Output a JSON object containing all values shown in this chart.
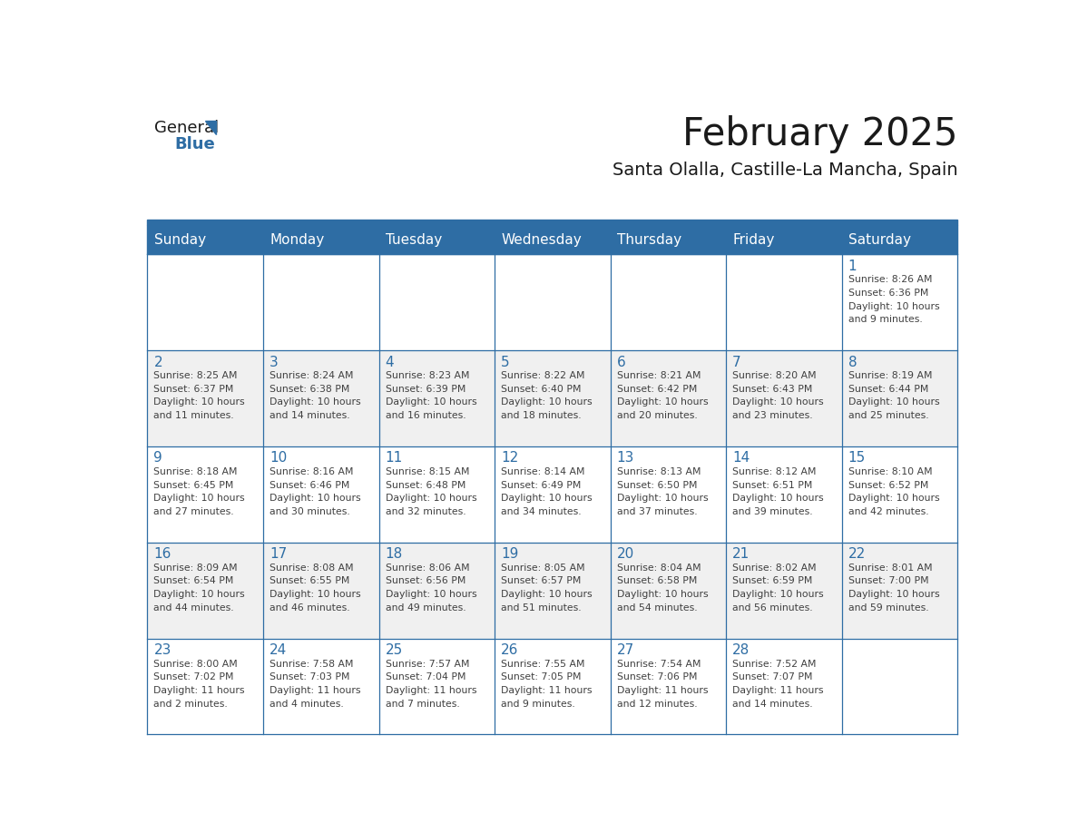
{
  "title": "February 2025",
  "subtitle": "Santa Olalla, Castille-La Mancha, Spain",
  "days_of_week": [
    "Sunday",
    "Monday",
    "Tuesday",
    "Wednesday",
    "Thursday",
    "Friday",
    "Saturday"
  ],
  "header_bg": "#2E6DA4",
  "header_text": "#FFFFFF",
  "cell_bg": "#FFFFFF",
  "cell_bg_alt": "#F0F0F0",
  "border_color": "#2E6DA4",
  "day_num_color": "#2E6DA4",
  "info_color": "#404040",
  "title_color": "#1a1a1a",
  "subtitle_color": "#1a1a1a",
  "logo_general_color": "#1a1a1a",
  "logo_blue_color": "#2E6DA4",
  "calendar_data": [
    [
      null,
      null,
      null,
      null,
      null,
      null,
      {
        "day": "1",
        "sunrise": "8:26 AM",
        "sunset": "6:36 PM",
        "daylight_line1": "Daylight: 10 hours",
        "daylight_line2": "and 9 minutes."
      }
    ],
    [
      {
        "day": "2",
        "sunrise": "8:25 AM",
        "sunset": "6:37 PM",
        "daylight_line1": "Daylight: 10 hours",
        "daylight_line2": "and 11 minutes."
      },
      {
        "day": "3",
        "sunrise": "8:24 AM",
        "sunset": "6:38 PM",
        "daylight_line1": "Daylight: 10 hours",
        "daylight_line2": "and 14 minutes."
      },
      {
        "day": "4",
        "sunrise": "8:23 AM",
        "sunset": "6:39 PM",
        "daylight_line1": "Daylight: 10 hours",
        "daylight_line2": "and 16 minutes."
      },
      {
        "day": "5",
        "sunrise": "8:22 AM",
        "sunset": "6:40 PM",
        "daylight_line1": "Daylight: 10 hours",
        "daylight_line2": "and 18 minutes."
      },
      {
        "day": "6",
        "sunrise": "8:21 AM",
        "sunset": "6:42 PM",
        "daylight_line1": "Daylight: 10 hours",
        "daylight_line2": "and 20 minutes."
      },
      {
        "day": "7",
        "sunrise": "8:20 AM",
        "sunset": "6:43 PM",
        "daylight_line1": "Daylight: 10 hours",
        "daylight_line2": "and 23 minutes."
      },
      {
        "day": "8",
        "sunrise": "8:19 AM",
        "sunset": "6:44 PM",
        "daylight_line1": "Daylight: 10 hours",
        "daylight_line2": "and 25 minutes."
      }
    ],
    [
      {
        "day": "9",
        "sunrise": "8:18 AM",
        "sunset": "6:45 PM",
        "daylight_line1": "Daylight: 10 hours",
        "daylight_line2": "and 27 minutes."
      },
      {
        "day": "10",
        "sunrise": "8:16 AM",
        "sunset": "6:46 PM",
        "daylight_line1": "Daylight: 10 hours",
        "daylight_line2": "and 30 minutes."
      },
      {
        "day": "11",
        "sunrise": "8:15 AM",
        "sunset": "6:48 PM",
        "daylight_line1": "Daylight: 10 hours",
        "daylight_line2": "and 32 minutes."
      },
      {
        "day": "12",
        "sunrise": "8:14 AM",
        "sunset": "6:49 PM",
        "daylight_line1": "Daylight: 10 hours",
        "daylight_line2": "and 34 minutes."
      },
      {
        "day": "13",
        "sunrise": "8:13 AM",
        "sunset": "6:50 PM",
        "daylight_line1": "Daylight: 10 hours",
        "daylight_line2": "and 37 minutes."
      },
      {
        "day": "14",
        "sunrise": "8:12 AM",
        "sunset": "6:51 PM",
        "daylight_line1": "Daylight: 10 hours",
        "daylight_line2": "and 39 minutes."
      },
      {
        "day": "15",
        "sunrise": "8:10 AM",
        "sunset": "6:52 PM",
        "daylight_line1": "Daylight: 10 hours",
        "daylight_line2": "and 42 minutes."
      }
    ],
    [
      {
        "day": "16",
        "sunrise": "8:09 AM",
        "sunset": "6:54 PM",
        "daylight_line1": "Daylight: 10 hours",
        "daylight_line2": "and 44 minutes."
      },
      {
        "day": "17",
        "sunrise": "8:08 AM",
        "sunset": "6:55 PM",
        "daylight_line1": "Daylight: 10 hours",
        "daylight_line2": "and 46 minutes."
      },
      {
        "day": "18",
        "sunrise": "8:06 AM",
        "sunset": "6:56 PM",
        "daylight_line1": "Daylight: 10 hours",
        "daylight_line2": "and 49 minutes."
      },
      {
        "day": "19",
        "sunrise": "8:05 AM",
        "sunset": "6:57 PM",
        "daylight_line1": "Daylight: 10 hours",
        "daylight_line2": "and 51 minutes."
      },
      {
        "day": "20",
        "sunrise": "8:04 AM",
        "sunset": "6:58 PM",
        "daylight_line1": "Daylight: 10 hours",
        "daylight_line2": "and 54 minutes."
      },
      {
        "day": "21",
        "sunrise": "8:02 AM",
        "sunset": "6:59 PM",
        "daylight_line1": "Daylight: 10 hours",
        "daylight_line2": "and 56 minutes."
      },
      {
        "day": "22",
        "sunrise": "8:01 AM",
        "sunset": "7:00 PM",
        "daylight_line1": "Daylight: 10 hours",
        "daylight_line2": "and 59 minutes."
      }
    ],
    [
      {
        "day": "23",
        "sunrise": "8:00 AM",
        "sunset": "7:02 PM",
        "daylight_line1": "Daylight: 11 hours",
        "daylight_line2": "and 2 minutes."
      },
      {
        "day": "24",
        "sunrise": "7:58 AM",
        "sunset": "7:03 PM",
        "daylight_line1": "Daylight: 11 hours",
        "daylight_line2": "and 4 minutes."
      },
      {
        "day": "25",
        "sunrise": "7:57 AM",
        "sunset": "7:04 PM",
        "daylight_line1": "Daylight: 11 hours",
        "daylight_line2": "and 7 minutes."
      },
      {
        "day": "26",
        "sunrise": "7:55 AM",
        "sunset": "7:05 PM",
        "daylight_line1": "Daylight: 11 hours",
        "daylight_line2": "and 9 minutes."
      },
      {
        "day": "27",
        "sunrise": "7:54 AM",
        "sunset": "7:06 PM",
        "daylight_line1": "Daylight: 11 hours",
        "daylight_line2": "and 12 minutes."
      },
      {
        "day": "28",
        "sunrise": "7:52 AM",
        "sunset": "7:07 PM",
        "daylight_line1": "Daylight: 11 hours",
        "daylight_line2": "and 14 minutes."
      },
      null
    ]
  ]
}
